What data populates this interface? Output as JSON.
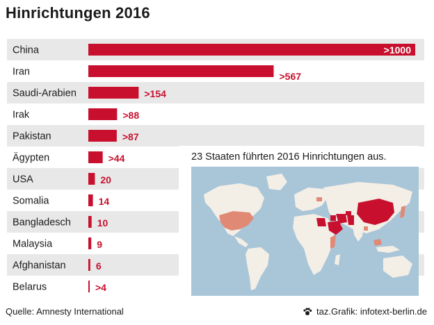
{
  "colors": {
    "bar": "#c8102e",
    "label": "#c8102e",
    "stripe": "#e8e8e8",
    "map_water": "#a9c5d8",
    "map_land": "#f3efe7",
    "map_high": "#c8102e",
    "map_low": "#e08a76"
  },
  "chart_data": {
    "type": "bar",
    "orientation": "horizontal",
    "title": "Hinrichtungen 2016",
    "categories": [
      "China",
      "Iran",
      "Saudi-Arabien",
      "Irak",
      "Pakistan",
      "Ägypten",
      "USA",
      "Somalia",
      "Bangladesch",
      "Malaysia",
      "Afghanistan",
      "Belarus"
    ],
    "values": [
      1000,
      567,
      154,
      88,
      87,
      44,
      20,
      14,
      10,
      9,
      6,
      4
    ],
    "value_labels": [
      ">1000",
      ">567",
      ">154",
      ">88",
      ">87",
      ">44",
      "20",
      "14",
      "10",
      "9",
      "6",
      ">4"
    ],
    "xlim": [
      0,
      1000
    ],
    "grid": false
  },
  "map": {
    "caption": "23 Staaten führten 2016 Hinrichtungen aus."
  },
  "footer": {
    "source": "Quelle: Amnesty International",
    "credit": "taz.Grafik: infotext-berlin.de",
    "credit_icon": "paw-icon"
  }
}
